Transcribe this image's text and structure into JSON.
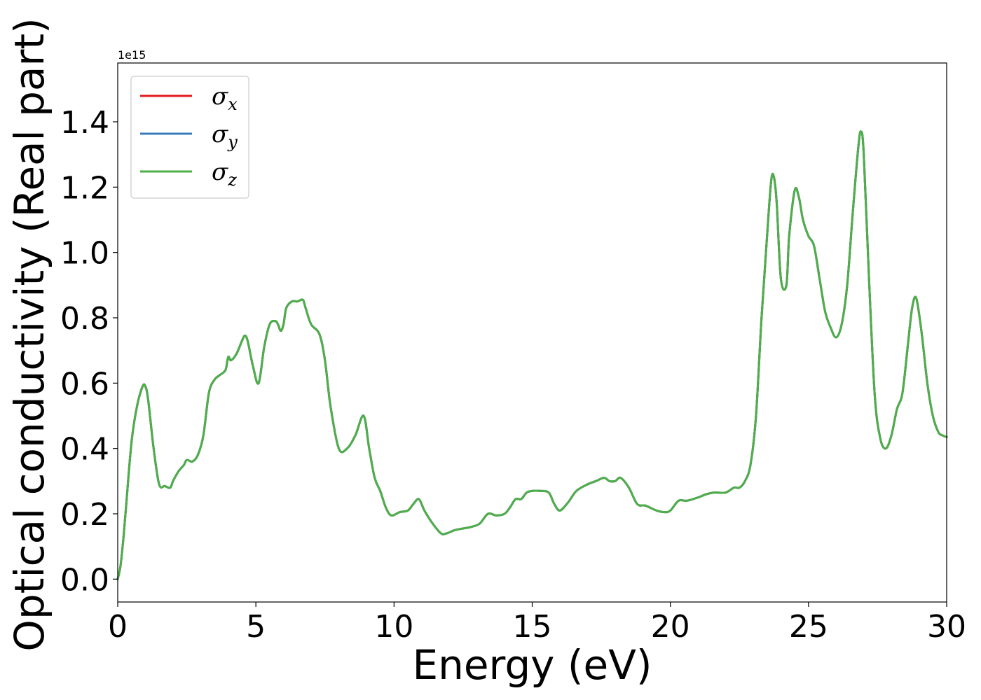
{
  "chart_data": {
    "type": "line",
    "title": "",
    "xlabel": "Energy (eV)",
    "ylabel": "Optical conductivity (Real part)",
    "y_offset_label": "1e15",
    "xlim": [
      0,
      30
    ],
    "ylim": [
      -0.07,
      1.58
    ],
    "x_ticks": [
      0,
      5,
      10,
      15,
      20,
      25,
      30
    ],
    "x_tick_labels": [
      "0",
      "5",
      "10",
      "15",
      "20",
      "25",
      "30"
    ],
    "y_ticks": [
      0.0,
      0.2,
      0.4,
      0.6,
      0.8,
      1.0,
      1.2,
      1.4
    ],
    "y_tick_labels": [
      "0.0",
      "0.2",
      "0.4",
      "0.6",
      "0.8",
      "1.0",
      "1.2",
      "1.4"
    ],
    "grid": false,
    "legend_position": "top-left",
    "x": [
      0,
      0.1,
      0.2,
      0.3,
      0.5,
      0.7,
      0.9,
      1.0,
      1.1,
      1.3,
      1.5,
      1.7,
      1.9,
      2.0,
      2.2,
      2.4,
      2.5,
      2.7,
      2.9,
      3.1,
      3.3,
      3.5,
      3.7,
      3.9,
      4.0,
      4.1,
      4.3,
      4.5,
      4.6,
      4.7,
      4.9,
      5.1,
      5.3,
      5.5,
      5.7,
      5.8,
      5.9,
      6.0,
      6.1,
      6.3,
      6.5,
      6.7,
      6.8,
      7.0,
      7.3,
      7.5,
      7.7,
      8.0,
      8.3,
      8.6,
      8.9,
      9.1,
      9.3,
      9.5,
      9.7,
      9.9,
      10.2,
      10.5,
      10.7,
      10.9,
      11.1,
      11.4,
      11.7,
      11.9,
      12.2,
      12.5,
      12.8,
      13.1,
      13.4,
      13.7,
      14.0,
      14.2,
      14.4,
      14.6,
      14.8,
      15.0,
      15.3,
      15.6,
      15.8,
      16.0,
      16.3,
      16.6,
      17.0,
      17.3,
      17.6,
      17.8,
      18.0,
      18.2,
      18.5,
      18.8,
      19.1,
      19.5,
      19.8,
      20.0,
      20.3,
      20.6,
      21.0,
      21.3,
      21.6,
      22.0,
      22.3,
      22.5,
      22.7,
      22.9,
      23.1,
      23.3,
      23.5,
      23.65,
      23.75,
      23.85,
      24.0,
      24.2,
      24.3,
      24.5,
      24.65,
      24.8,
      25.0,
      25.2,
      25.4,
      25.6,
      25.8,
      26.0,
      26.2,
      26.4,
      26.6,
      26.8,
      26.9,
      27.0,
      27.2,
      27.4,
      27.6,
      27.8,
      28.0,
      28.2,
      28.4,
      28.6,
      28.75,
      28.9,
      29.1,
      29.3,
      29.5,
      29.7,
      29.85,
      30.0
    ],
    "series": [
      {
        "name": "σx",
        "color": "#e41a1c",
        "values": [
          0.0,
          0.04,
          0.12,
          0.22,
          0.42,
          0.53,
          0.59,
          0.59,
          0.55,
          0.4,
          0.29,
          0.285,
          0.28,
          0.3,
          0.33,
          0.35,
          0.365,
          0.36,
          0.38,
          0.44,
          0.57,
          0.61,
          0.625,
          0.64,
          0.68,
          0.67,
          0.69,
          0.73,
          0.745,
          0.73,
          0.65,
          0.6,
          0.71,
          0.78,
          0.79,
          0.78,
          0.76,
          0.78,
          0.83,
          0.85,
          0.85,
          0.855,
          0.83,
          0.78,
          0.75,
          0.67,
          0.53,
          0.4,
          0.4,
          0.44,
          0.5,
          0.4,
          0.31,
          0.27,
          0.22,
          0.195,
          0.205,
          0.21,
          0.23,
          0.245,
          0.21,
          0.17,
          0.14,
          0.14,
          0.15,
          0.155,
          0.16,
          0.17,
          0.2,
          0.195,
          0.2,
          0.22,
          0.245,
          0.245,
          0.265,
          0.27,
          0.27,
          0.265,
          0.23,
          0.21,
          0.235,
          0.27,
          0.29,
          0.3,
          0.31,
          0.3,
          0.3,
          0.31,
          0.28,
          0.23,
          0.225,
          0.21,
          0.205,
          0.21,
          0.24,
          0.24,
          0.25,
          0.26,
          0.265,
          0.265,
          0.28,
          0.28,
          0.3,
          0.35,
          0.5,
          0.8,
          1.05,
          1.22,
          1.23,
          1.15,
          0.92,
          0.9,
          1.05,
          1.19,
          1.17,
          1.1,
          1.05,
          1.02,
          0.92,
          0.82,
          0.77,
          0.74,
          0.78,
          0.9,
          1.12,
          1.32,
          1.37,
          1.3,
          0.9,
          0.56,
          0.43,
          0.4,
          0.44,
          0.52,
          0.57,
          0.72,
          0.83,
          0.86,
          0.75,
          0.6,
          0.5,
          0.45,
          0.44,
          0.435
        ]
      },
      {
        "name": "σy",
        "color": "#377eb8",
        "values": [
          0.0,
          0.04,
          0.12,
          0.22,
          0.42,
          0.53,
          0.59,
          0.59,
          0.55,
          0.4,
          0.29,
          0.285,
          0.28,
          0.3,
          0.33,
          0.35,
          0.365,
          0.36,
          0.38,
          0.44,
          0.57,
          0.61,
          0.625,
          0.64,
          0.68,
          0.67,
          0.69,
          0.73,
          0.745,
          0.73,
          0.65,
          0.6,
          0.71,
          0.78,
          0.79,
          0.78,
          0.76,
          0.78,
          0.83,
          0.85,
          0.85,
          0.855,
          0.83,
          0.78,
          0.75,
          0.67,
          0.53,
          0.4,
          0.4,
          0.44,
          0.5,
          0.4,
          0.31,
          0.27,
          0.22,
          0.195,
          0.205,
          0.21,
          0.23,
          0.245,
          0.21,
          0.17,
          0.14,
          0.14,
          0.15,
          0.155,
          0.16,
          0.17,
          0.2,
          0.195,
          0.2,
          0.22,
          0.245,
          0.245,
          0.265,
          0.27,
          0.27,
          0.265,
          0.23,
          0.21,
          0.235,
          0.27,
          0.29,
          0.3,
          0.31,
          0.3,
          0.3,
          0.31,
          0.28,
          0.23,
          0.225,
          0.21,
          0.205,
          0.21,
          0.24,
          0.24,
          0.25,
          0.26,
          0.265,
          0.265,
          0.28,
          0.28,
          0.3,
          0.35,
          0.5,
          0.8,
          1.05,
          1.22,
          1.23,
          1.15,
          0.92,
          0.9,
          1.05,
          1.19,
          1.17,
          1.1,
          1.05,
          1.02,
          0.92,
          0.82,
          0.77,
          0.74,
          0.78,
          0.9,
          1.12,
          1.32,
          1.37,
          1.3,
          0.9,
          0.56,
          0.43,
          0.4,
          0.44,
          0.52,
          0.57,
          0.72,
          0.83,
          0.86,
          0.75,
          0.6,
          0.5,
          0.45,
          0.44,
          0.435
        ]
      },
      {
        "name": "σz",
        "color": "#4daf4a",
        "values": [
          0.0,
          0.04,
          0.12,
          0.22,
          0.42,
          0.53,
          0.59,
          0.59,
          0.55,
          0.4,
          0.29,
          0.285,
          0.28,
          0.3,
          0.33,
          0.35,
          0.365,
          0.36,
          0.38,
          0.44,
          0.57,
          0.61,
          0.625,
          0.64,
          0.68,
          0.67,
          0.69,
          0.73,
          0.745,
          0.73,
          0.65,
          0.6,
          0.71,
          0.78,
          0.79,
          0.78,
          0.76,
          0.78,
          0.83,
          0.85,
          0.85,
          0.855,
          0.83,
          0.78,
          0.75,
          0.67,
          0.53,
          0.4,
          0.4,
          0.44,
          0.5,
          0.4,
          0.31,
          0.27,
          0.22,
          0.195,
          0.205,
          0.21,
          0.23,
          0.245,
          0.21,
          0.17,
          0.14,
          0.14,
          0.15,
          0.155,
          0.16,
          0.17,
          0.2,
          0.195,
          0.2,
          0.22,
          0.245,
          0.245,
          0.265,
          0.27,
          0.27,
          0.265,
          0.23,
          0.21,
          0.235,
          0.27,
          0.29,
          0.3,
          0.31,
          0.3,
          0.3,
          0.31,
          0.28,
          0.23,
          0.225,
          0.21,
          0.205,
          0.21,
          0.24,
          0.24,
          0.25,
          0.26,
          0.265,
          0.265,
          0.28,
          0.28,
          0.3,
          0.35,
          0.5,
          0.8,
          1.05,
          1.22,
          1.23,
          1.15,
          0.92,
          0.9,
          1.05,
          1.19,
          1.17,
          1.1,
          1.05,
          1.02,
          0.92,
          0.82,
          0.77,
          0.74,
          0.78,
          0.9,
          1.12,
          1.32,
          1.37,
          1.3,
          0.9,
          0.56,
          0.43,
          0.4,
          0.44,
          0.52,
          0.57,
          0.72,
          0.83,
          0.86,
          0.75,
          0.6,
          0.5,
          0.45,
          0.44,
          0.435
        ]
      }
    ],
    "legend": [
      {
        "symbol": "σ",
        "subscript": "x",
        "color": "#e41a1c"
      },
      {
        "symbol": "σ",
        "subscript": "y",
        "color": "#377eb8"
      },
      {
        "symbol": "σ",
        "subscript": "z",
        "color": "#4daf4a"
      }
    ]
  }
}
